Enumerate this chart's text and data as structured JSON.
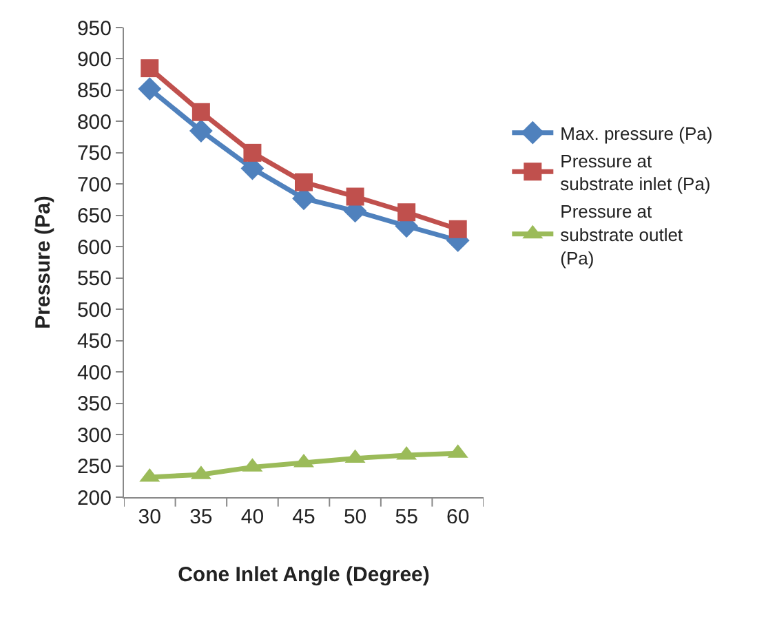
{
  "chart_data": {
    "type": "line",
    "xlabel": "Cone Inlet Angle (Degree)",
    "ylabel": "Pressure (Pa)",
    "categories": [
      "30",
      "35",
      "40",
      "45",
      "50",
      "55",
      "60"
    ],
    "series": [
      {
        "name": "Max. pressure (Pa)",
        "color": "#4f81bd",
        "marker": "diamond",
        "values": [
          852,
          785,
          725,
          677,
          657,
          633,
          610
        ]
      },
      {
        "name": "Pressure at substrate inlet (Pa)",
        "color": "#c0504d",
        "marker": "square",
        "values": [
          885,
          815,
          750,
          703,
          680,
          655,
          628
        ]
      },
      {
        "name": "Pressure at substrate outlet (Pa)",
        "color": "#9bbb59",
        "marker": "triangle",
        "values": [
          232,
          236,
          248,
          255,
          262,
          267,
          270
        ]
      }
    ],
    "ylim": [
      200,
      950
    ],
    "yticks": [
      200,
      250,
      300,
      350,
      400,
      450,
      500,
      550,
      600,
      650,
      700,
      750,
      800,
      850,
      900,
      950
    ],
    "legend": "right",
    "line_style": "solid"
  }
}
